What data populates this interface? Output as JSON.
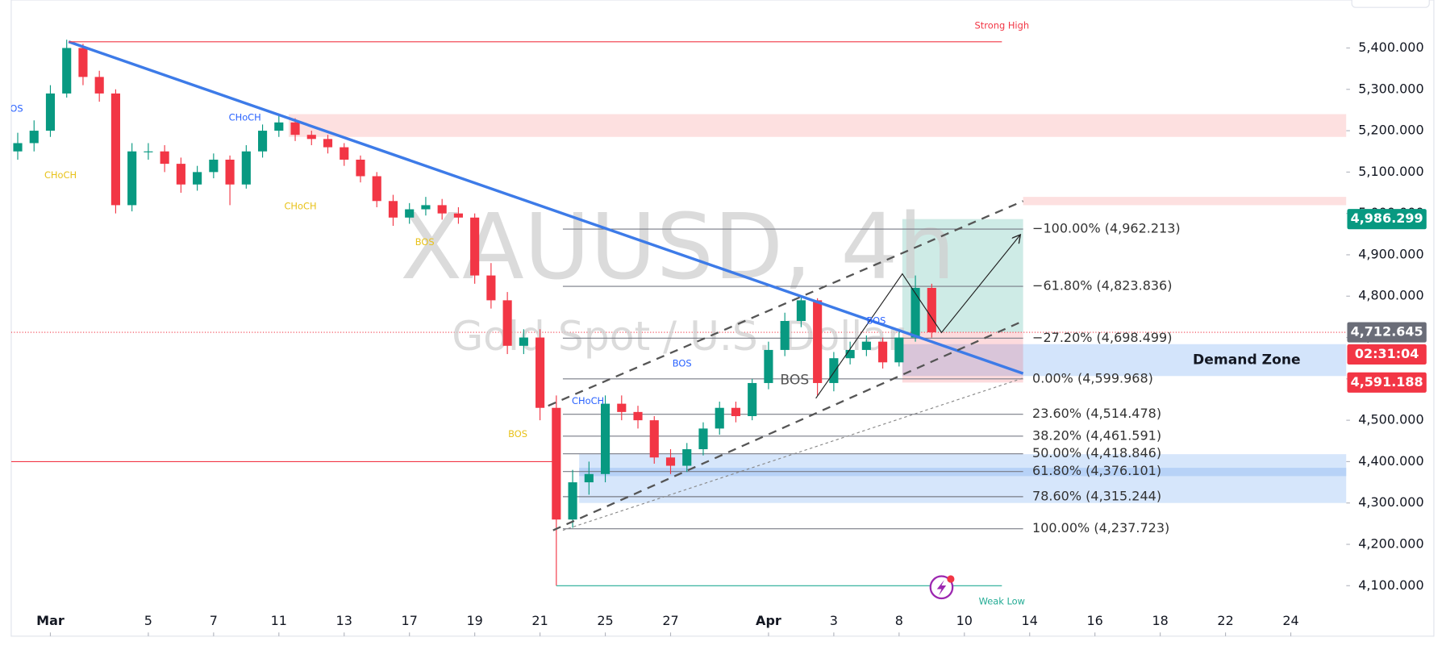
{
  "chart_data": {
    "type": "candlestick",
    "title": "XAUUSD, 4h",
    "subtitle": "Gold Spot / U.S. Dollar",
    "xlim": [
      -1.2,
      39.7
    ],
    "ylim": [
      3978,
      5516
    ],
    "xticks": [
      {
        "value": 0,
        "label": "Mar"
      },
      {
        "value": 3,
        "label": "5"
      },
      {
        "value": 5,
        "label": "7"
      },
      {
        "value": 7,
        "label": "11"
      },
      {
        "value": 9,
        "label": "13"
      },
      {
        "value": 11,
        "label": "17"
      },
      {
        "value": 13,
        "label": "19"
      },
      {
        "value": 15,
        "label": "21"
      },
      {
        "value": 17,
        "label": "25"
      },
      {
        "value": 19,
        "label": "27"
      },
      {
        "value": 22,
        "label": "Apr"
      },
      {
        "value": 24,
        "label": "3"
      },
      {
        "value": 26,
        "label": "8"
      },
      {
        "value": 28,
        "label": "10"
      },
      {
        "value": 30,
        "label": "14"
      },
      {
        "value": 32,
        "label": "16"
      },
      {
        "value": 34,
        "label": "18"
      },
      {
        "value": 36,
        "label": "22"
      },
      {
        "value": 38,
        "label": "24"
      }
    ],
    "yticks": [
      {
        "value": 4100,
        "label": "4,100.000"
      },
      {
        "value": 4200,
        "label": "4,200.000"
      },
      {
        "value": 4300,
        "label": "4,300.000"
      },
      {
        "value": 4400,
        "label": "4,400.000"
      },
      {
        "value": 4500,
        "label": "4,500.000"
      },
      {
        "value": 4600,
        "label": "4,600.000"
      },
      {
        "value": 4700,
        "label": "4,700.000"
      },
      {
        "value": 4800,
        "label": "4,800.000"
      },
      {
        "value": 4900,
        "label": "4,900.000"
      },
      {
        "value": 5000,
        "label": "5,000.000"
      },
      {
        "value": 5100,
        "label": "5,100.000"
      },
      {
        "value": 5200,
        "label": "5,200.000"
      },
      {
        "value": 5300,
        "label": "5,300.000"
      },
      {
        "value": 5400,
        "label": "5,400.000"
      }
    ],
    "up_color": "#089981",
    "down_color": "#f23645",
    "candles": {
      "x": [
        -1,
        -0.5,
        0,
        0.5,
        1,
        1.5,
        2,
        2.5,
        3,
        3.5,
        4,
        4.5,
        5,
        5.5,
        6,
        6.5,
        7,
        7.5,
        8,
        8.5,
        9,
        9.5,
        10,
        10.5,
        11,
        11.5,
        12,
        12.5,
        13,
        13.5,
        14,
        14.5,
        15,
        15.5,
        16,
        16.5,
        17,
        17.5,
        18,
        18.5,
        19,
        19.5,
        20,
        20.5,
        21,
        21.5,
        22,
        22.5,
        23,
        23.5,
        24,
        24.5,
        25,
        25.5,
        26,
        26.5,
        27
      ],
      "open": [
        5150,
        5170,
        5200,
        5290,
        5400,
        5330,
        5290,
        5020,
        5150,
        5150,
        5120,
        5070,
        5100,
        5130,
        5070,
        5150,
        5200,
        5220,
        5190,
        5180,
        5160,
        5130,
        5090,
        5030,
        4990,
        5010,
        5020,
        5000,
        4990,
        4850,
        4790,
        4680,
        4700,
        4530,
        4260,
        4350,
        4370,
        4540,
        4520,
        4500,
        4410,
        4390,
        4430,
        4480,
        4530,
        4510,
        4590,
        4670,
        4740,
        4790,
        4590,
        4650,
        4670,
        4690,
        4640,
        4700,
        4820
      ],
      "high": [
        5195,
        5225,
        5310,
        5420,
        5410,
        5345,
        5300,
        5170,
        5170,
        5165,
        5135,
        5115,
        5145,
        5140,
        5165,
        5215,
        5240,
        5230,
        5200,
        5190,
        5170,
        5140,
        5100,
        5045,
        5025,
        5040,
        5035,
        5015,
        5000,
        4880,
        4810,
        4720,
        4720,
        4560,
        4380,
        4400,
        4560,
        4560,
        4535,
        4510,
        4430,
        4445,
        4495,
        4545,
        4545,
        4600,
        4690,
        4760,
        4800,
        4795,
        4665,
        4690,
        4705,
        4700,
        4720,
        4850,
        4830
      ],
      "low": [
        5130,
        5150,
        5185,
        5280,
        5310,
        5270,
        5000,
        5005,
        5130,
        5100,
        5050,
        5055,
        5085,
        5020,
        5060,
        5135,
        5185,
        5175,
        5165,
        5145,
        5115,
        5075,
        5015,
        4970,
        4975,
        4995,
        4985,
        4975,
        4830,
        4770,
        4660,
        4660,
        4500,
        4100,
        4240,
        4320,
        4350,
        4500,
        4480,
        4395,
        4370,
        4375,
        4415,
        4465,
        4495,
        4500,
        4575,
        4655,
        4725,
        4560,
        4570,
        4635,
        4655,
        4625,
        4630,
        4690,
        4700
      ],
      "close": [
        5170,
        5200,
        5290,
        5400,
        5330,
        5290,
        5020,
        5150,
        5150,
        5120,
        5070,
        5100,
        5130,
        5070,
        5150,
        5200,
        5220,
        5190,
        5180,
        5160,
        5130,
        5090,
        5030,
        4990,
        5010,
        5020,
        5000,
        4990,
        4850,
        4790,
        4680,
        4700,
        4530,
        4260,
        4350,
        4370,
        4540,
        4520,
        4500,
        4410,
        4390,
        4430,
        4480,
        4530,
        4510,
        4590,
        4670,
        4740,
        4790,
        4590,
        4650,
        4670,
        4690,
        4640,
        4700,
        4820,
        4712.645
      ]
    },
    "price_labels": [
      {
        "value": 4986.299,
        "label": "4,986.299",
        "color": "#089981"
      },
      {
        "value": 4712.645,
        "label": "4,712.645",
        "color": "#6a6d78"
      },
      {
        "label": "02:31:04",
        "color": "#f23645"
      },
      {
        "value": 4591.188,
        "label": "4,591.188",
        "color": "#f23645"
      }
    ],
    "fib_levels": [
      {
        "value": 4962.213,
        "label": "−100.00% (4,962.213)"
      },
      {
        "value": 4823.836,
        "label": "−61.80% (4,823.836)"
      },
      {
        "value": 4698.499,
        "label": "−27.20% (4,698.499)"
      },
      {
        "value": 4599.968,
        "label": "0.00% (4,599.968)"
      },
      {
        "value": 4514.478,
        "label": "23.60% (4,514.478)"
      },
      {
        "value": 4461.591,
        "label": "38.20% (4,461.591)"
      },
      {
        "value": 4418.846,
        "label": "50.00% (4,418.846)"
      },
      {
        "value": 4376.101,
        "label": "61.80% (4,376.101)"
      },
      {
        "value": 4315.244,
        "label": "78.60% (4,315.244)"
      },
      {
        "value": 4237.723,
        "label": "100.00% (4,237.723)"
      }
    ],
    "fib_x": [
      15.7,
      29.8
    ],
    "zones": [
      {
        "from": 7.3,
        "top": 5240,
        "bottom": 5185,
        "color": "#fde0e0"
      },
      {
        "from": 29.8,
        "top": 5040,
        "bottom": 5020,
        "color": "#fde0e0"
      },
      {
        "from": 16.2,
        "top": 4418,
        "bottom": 4300,
        "color": "#d6e6fb"
      },
      {
        "from": 16.2,
        "top": 4385,
        "bottom": 4365,
        "color": "#b7d2f7"
      },
      {
        "from": 26.1,
        "top": 4684,
        "bottom": 4607,
        "color": "#d3e4fb",
        "label": "Demand Zone"
      }
    ],
    "lines": [
      {
        "points": [
          [
            0.56,
            5415
          ],
          [
            29.8,
            4613
          ]
        ],
        "color": "#3d7be8",
        "width": 3
      },
      {
        "points": [
          [
            0.56,
            5415
          ],
          [
            29.15,
            5415
          ]
        ],
        "color": "#f23645",
        "width": 1
      },
      {
        "points": [
          [
            15.5,
            4100
          ],
          [
            29.15,
            4100
          ]
        ],
        "color": "#22ab94",
        "width": 1
      },
      {
        "points": [
          [
            -1.2,
            4400
          ],
          [
            15.4,
            4400
          ]
        ],
        "color": "#f23645",
        "width": 1
      },
      {
        "points": [
          [
            15.25,
            4535
          ],
          [
            29.8,
            5030
          ]
        ],
        "color": "#555555",
        "width": 2,
        "dash": "9 7"
      },
      {
        "points": [
          [
            15.4,
            4234
          ],
          [
            29.8,
            4740
          ]
        ],
        "color": "#555555",
        "width": 2,
        "dash": "9 7"
      },
      {
        "points": [
          [
            15.7,
            4234
          ],
          [
            29.8,
            4602
          ]
        ],
        "color": "#888888",
        "width": 1,
        "dash": "3 3"
      },
      {
        "points": [
          [
            23.45,
            4553
          ],
          [
            26.1,
            4854
          ],
          [
            27.3,
            4712
          ],
          [
            29.7,
            4947
          ]
        ],
        "color": "#222222",
        "width": 1,
        "arrow": true
      }
    ],
    "annotations": [
      {
        "text": "BOS",
        "x": -1.13,
        "y": 5253,
        "color": "#2962ff"
      },
      {
        "text": "CHoCH",
        "x": 0.31,
        "y": 5092,
        "color": "#e8c21a"
      },
      {
        "text": "CHoCH",
        "x": 5.96,
        "y": 5231,
        "color": "#2962ff"
      },
      {
        "text": "CHoCH",
        "x": 7.66,
        "y": 5017,
        "color": "#e8c21a"
      },
      {
        "text": "BOS",
        "x": 11.47,
        "y": 4930,
        "color": "#e8c21a"
      },
      {
        "text": "BOS",
        "x": 14.32,
        "y": 4466,
        "color": "#e8c21a"
      },
      {
        "text": "CHoCH",
        "x": 16.47,
        "y": 4546,
        "color": "#2962ff"
      },
      {
        "text": "BOS",
        "x": 19.35,
        "y": 4637,
        "color": "#2962ff"
      },
      {
        "text": "BOS",
        "x": 22.8,
        "y": 4597,
        "color": "#555555",
        "size": 15
      },
      {
        "text": "BOS",
        "x": 25.3,
        "y": 4740,
        "color": "#2962ff"
      },
      {
        "text": "Strong High",
        "x": 29.15,
        "y": 5454,
        "color": "#f23645"
      },
      {
        "text": "Weak Low",
        "x": 29.15,
        "y": 4062,
        "color": "#22ab94"
      }
    ]
  }
}
